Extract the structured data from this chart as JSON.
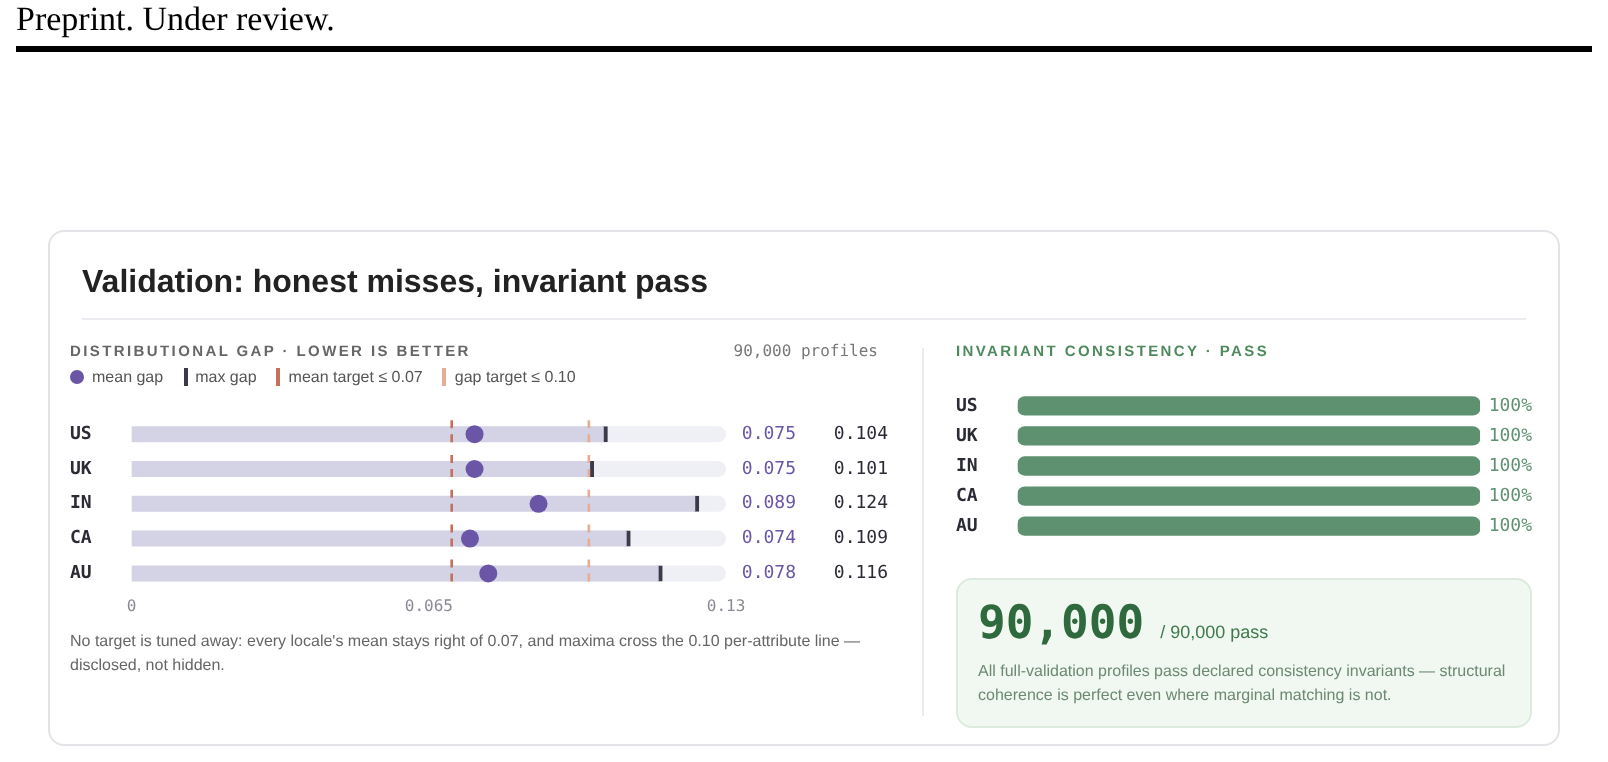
{
  "chart_data": [
    {
      "type": "bar",
      "orientation": "horizontal",
      "title": "Validation: honest misses, invariant pass",
      "subtitle": "DISTRIBUTIONAL GAP · LOWER IS BETTER",
      "categories": [
        "US",
        "UK",
        "IN",
        "CA",
        "AU"
      ],
      "series": [
        {
          "name": "mean gap",
          "type": "scatter",
          "color": "#6a55a6",
          "values": [
            0.075,
            0.075,
            0.089,
            0.074,
            0.078
          ]
        },
        {
          "name": "max gap",
          "type": "bar",
          "color": "#d4d3e6",
          "values": [
            0.104,
            0.101,
            0.124,
            0.109,
            0.116
          ]
        }
      ],
      "xlim": [
        0,
        0.13
      ],
      "xticks": [
        0,
        0.065,
        0.13
      ],
      "grid": false,
      "legend": "top left",
      "data_labels": true,
      "marker": "circle",
      "ref_lines": [
        {
          "axis": "x",
          "value": 0.07,
          "label": "mean target ≤ 0.07",
          "color": "#c4705a",
          "line_style": "dashed"
        },
        {
          "axis": "x",
          "value": 0.1,
          "label": "gap target ≤ 0.10",
          "color": "#e6ad94",
          "line_style": "dashed"
        }
      ],
      "annotations": [
        "Preprint. Under review.",
        "90,000 profiles",
        "No target is tuned away: every locale's mean stays right of 0.07, and maxima cross the 0.10 per-attribute line — disclosed, not hidden."
      ]
    },
    {
      "type": "bar",
      "orientation": "horizontal",
      "title": "INVARIANT CONSISTENCY · PASS",
      "categories": [
        "US",
        "UK",
        "IN",
        "CA",
        "AU"
      ],
      "values": [
        100,
        100,
        100,
        100,
        100
      ],
      "value_labels": [
        "100%",
        "100%",
        "100%",
        "100%",
        "100%"
      ],
      "color": "#5e9170",
      "tick_labels": "y",
      "grid": false
    },
    {
      "type": "other",
      "annotations": [
        "90,000",
        "/ 90,000 pass",
        "All full-validation profiles pass declared consistency invariants — structural coherence is perfect even where marginal matching is not."
      ]
    }
  ]
}
